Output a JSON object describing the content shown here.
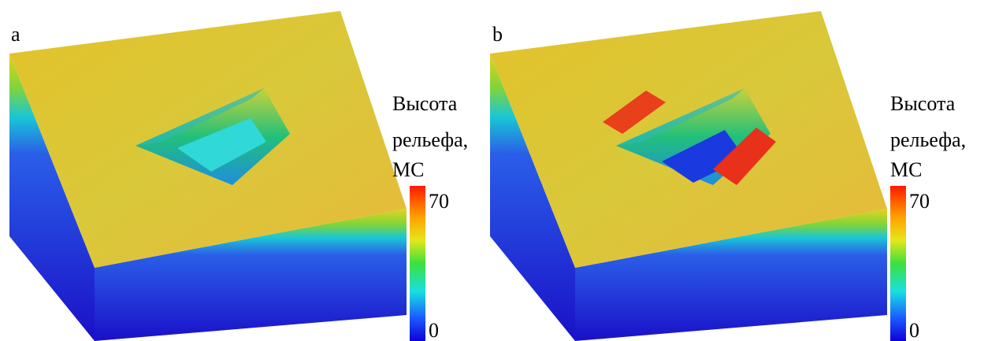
{
  "panels": [
    {
      "label": "a",
      "colorbar": {
        "title": [
          "Высота",
          "рельефа,",
          "МС"
        ],
        "ticks": [
          "70",
          "0"
        ]
      }
    },
    {
      "label": "b",
      "colorbar": {
        "title": [
          "Высота",
          "рельефа,",
          "МС"
        ],
        "ticks": [
          "70",
          "0"
        ]
      }
    }
  ]
}
